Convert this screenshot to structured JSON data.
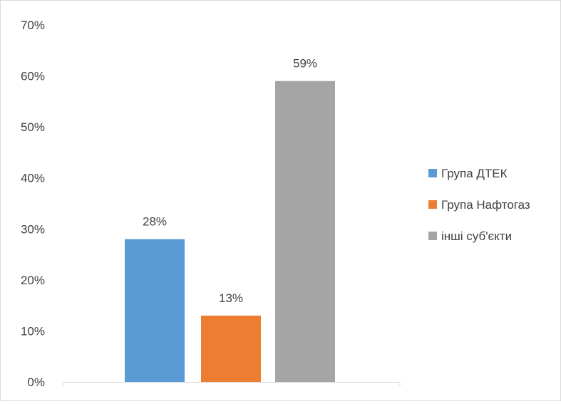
{
  "chart_data": {
    "type": "bar",
    "title": "",
    "xlabel": "",
    "ylabel": "",
    "ylim": [
      0,
      70
    ],
    "y_ticks": [
      0,
      10,
      20,
      30,
      40,
      50,
      60,
      70
    ],
    "y_tick_format": "percent",
    "grid": false,
    "legend_position": "right",
    "categories": [
      "Група ДТЕК",
      "Група Нафтогаз",
      "інші суб'єкти"
    ],
    "values": [
      28,
      13,
      59
    ],
    "value_labels": [
      "28%",
      "13%",
      "59%"
    ],
    "colors": [
      "#5b9bd5",
      "#ed7d31",
      "#a5a5a5"
    ],
    "legend": [
      {
        "label": "Група ДТЕК",
        "color": "#5b9bd5"
      },
      {
        "label": "Група Нафтогаз",
        "color": "#ed7d31"
      },
      {
        "label": "інші суб'єкти",
        "color": "#a5a5a5"
      }
    ]
  }
}
